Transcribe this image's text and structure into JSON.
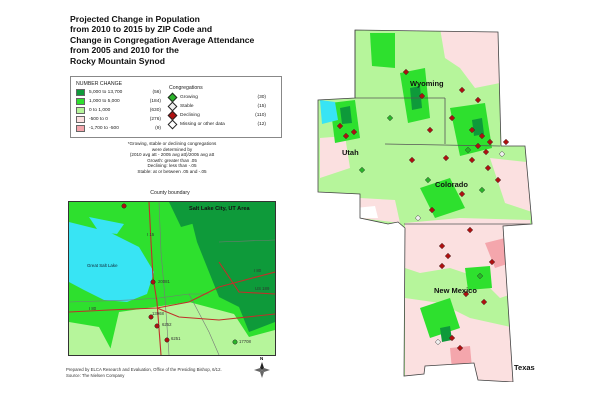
{
  "title": {
    "lines": [
      "Projected Change in Population",
      "from 2010 to 2015 by ZIP Code and",
      "Change in Congregation Average Attendance",
      "from 2005 and 2010 for the",
      "Rocky Mountain Synod"
    ]
  },
  "legend": {
    "number_change": {
      "heading": "NUMBER CHANGE",
      "items": [
        {
          "range": "5,000 to 13,700",
          "count": "(56)",
          "color": "#0e9a3a"
        },
        {
          "range": "1,000 to 5,000",
          "count": "(184)",
          "color": "#2ee02e"
        },
        {
          "range": "0 to 1,000",
          "count": "(630)",
          "color": "#b6f59b"
        },
        {
          "range": "-500 to 0",
          "count": "(276)",
          "color": "#fbe0e0"
        },
        {
          "range": "-1,700 to -500",
          "count": "(9)",
          "color": "#f4a6ac"
        }
      ]
    },
    "congregations": {
      "heading": "Congregations",
      "items": [
        {
          "label": "Growing",
          "count": "(30)",
          "color": "#2ab52a"
        },
        {
          "label": "Stable",
          "count": "(15)",
          "color": "#f0f0f0"
        },
        {
          "label": "Declining",
          "count": "(110)",
          "color": "#b01010"
        },
        {
          "label": "Missing or other data",
          "count": "(12)",
          "color": "#ffffff"
        }
      ]
    }
  },
  "note": {
    "lines": [
      "*Growing, stable or declining congregations",
      "were determined by",
      "(2010 avg att - 2005 avg att)/2005 avg att",
      "Growth: greater than .05",
      "Declining: less than -.05",
      "Stable: at or between .05 and -.05"
    ]
  },
  "county_boundary_label": "County boundary",
  "inset": {
    "title": "Salt Lake City, UT Area",
    "lake_label": "Great Salt Lake",
    "point_labels": [
      "20081",
      "13968",
      "6252",
      "6251",
      "17708"
    ],
    "road_labels": [
      "I 80",
      "I 15",
      "I 80",
      "US 189"
    ]
  },
  "state_labels": {
    "wyoming": "Wyoming",
    "utah": "Utah",
    "colorado": "Colorado",
    "new_mexico": "New Mexico",
    "texas": "Texas"
  },
  "credits": {
    "line1": "Prepared by ELCA Research and Evaluation, Office of the Presiding Bishop, 6/12.",
    "line2": "Source: The Nielsen Company"
  },
  "compass_label": "N"
}
